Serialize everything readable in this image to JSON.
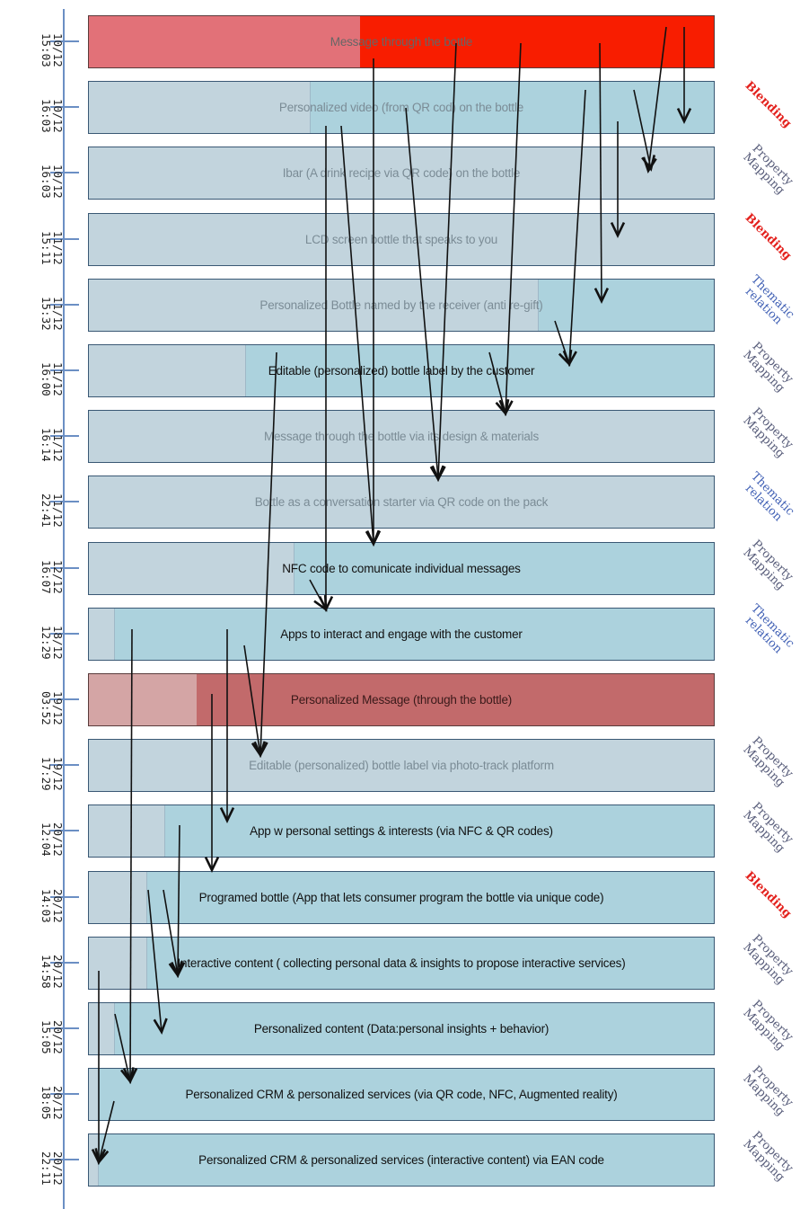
{
  "timeline": {
    "entries": [
      {
        "date": "10/12",
        "time": "15:03",
        "label": "Message through the bottle",
        "relation": ""
      },
      {
        "date": "10/12",
        "time": "16:03",
        "label": "Personalized video (from QR cod) on the bottle",
        "relation": "Blending"
      },
      {
        "date": "10/12",
        "time": "16:03",
        "label": "Ibar (A drink recipe via QR code) on the bottle",
        "relation": "Property Mapping"
      },
      {
        "date": "11/12",
        "time": "15:11",
        "label": "LCD screen bottle that speaks to you",
        "relation": "Blending"
      },
      {
        "date": "11/12",
        "time": "15:32",
        "label": "Personalized Bottle named by the receiver (anti re-gift)",
        "relation": "Thematic relation"
      },
      {
        "date": "11/12",
        "time": "16:00",
        "label": "Editable (personalized) bottle label by the customer",
        "relation": "Property Mapping"
      },
      {
        "date": "11/12",
        "time": "16:14",
        "label": "Message through the bottle via its design & materials",
        "relation": "Property Mapping"
      },
      {
        "date": "11/12",
        "time": "22:41",
        "label": "Bottle as a conversation starter via QR code on the pack",
        "relation": "Thematic relation"
      },
      {
        "date": "12/12",
        "time": "16:07",
        "label": "NFC code to comunicate individual messages",
        "relation": "Property Mapping"
      },
      {
        "date": "18/12",
        "time": "12:29",
        "label": "Apps to interact and engage with the customer",
        "relation": "Thematic relation"
      },
      {
        "date": "19/12",
        "time": "03:52",
        "label": "Personalized Message (through the bottle)",
        "relation": ""
      },
      {
        "date": "19/12",
        "time": "17:29",
        "label": "Editable (personalized) bottle label via photo-track platform",
        "relation": "Property Mapping"
      },
      {
        "date": "20/12",
        "time": "12:04",
        "label": "App w personal settings & interests (via NFC & QR codes)",
        "relation": "Property Mapping"
      },
      {
        "date": "20/12",
        "time": "14:03",
        "label": "Programed bottle (App that lets consumer program the bottle via unique code)",
        "relation": "Blending"
      },
      {
        "date": "20/12",
        "time": "14:58",
        "label": "Interactive content ( collecting personal data & insights to propose interactive services)",
        "relation": "Property Mapping"
      },
      {
        "date": "20/12",
        "time": "15:05",
        "label": "Personalized content (Data:personal insights + behavior)",
        "relation": "Property Mapping"
      },
      {
        "date": "20/12",
        "time": "18:05",
        "label": "Personalized CRM & personalized services (via QR code, NFC, Augmented reality)",
        "relation": "Property Mapping"
      },
      {
        "date": "20/12",
        "time": "22:11",
        "label": "Personalized CRM & personalized services (interactive content) via EAN code",
        "relation": "Property Mapping"
      }
    ]
  },
  "colors": {
    "axis": "#6b8fc4",
    "box": "#acd2dd",
    "box_fill": "#c2d4dd",
    "red": "#f81d00",
    "dark_red": "#c26a6b",
    "blending": "#e3201c",
    "property_mapping": "#555a78",
    "thematic_relation": "#3f5fb4"
  }
}
